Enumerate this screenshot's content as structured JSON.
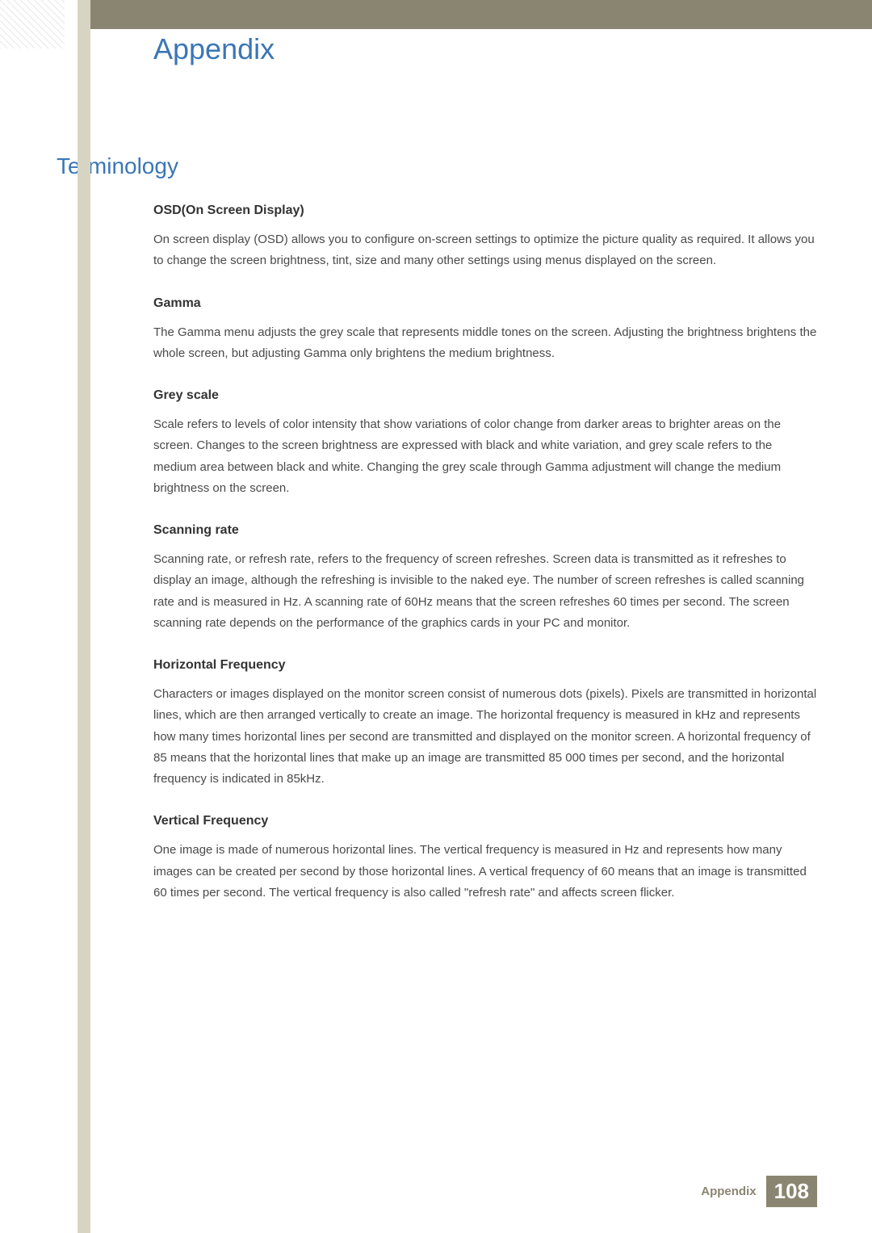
{
  "colors": {
    "accent_blue": "#3b76b5",
    "header_olive": "#8a8570",
    "side_beige": "#d8d4c4",
    "body_text": "#4a4a4a",
    "heading_text": "#333333",
    "background": "#ffffff"
  },
  "typography": {
    "chapter_title_size_pt": 27,
    "section_title_size_pt": 21,
    "term_title_size_pt": 12,
    "body_size_pt": 11,
    "page_number_size_pt": 20,
    "body_line_height": 1.75
  },
  "chapter_title": "Appendix",
  "section_title": "Terminology",
  "terms": [
    {
      "title": "OSD(On Screen Display)",
      "body": "On screen display (OSD) allows you to configure on-screen settings to optimize the picture quality as required. It allows you to change the screen brightness, tint, size and many other settings using menus displayed on the screen."
    },
    {
      "title": "Gamma",
      "body": "The Gamma menu adjusts the grey scale that represents middle tones on the screen. Adjusting the brightness brightens the whole screen, but adjusting Gamma only brightens the medium brightness."
    },
    {
      "title": "Grey scale",
      "body": "Scale refers to levels of color intensity that show variations of color change from darker areas to brighter areas on the screen. Changes to the screen brightness are expressed with black and white variation, and grey scale refers to the medium area between black and white. Changing the grey scale through Gamma adjustment will change the medium brightness on the screen."
    },
    {
      "title": "Scanning rate",
      "body": "Scanning rate, or refresh rate, refers to the frequency of screen refreshes. Screen data is transmitted as it refreshes to display an image, although the refreshing is invisible to the naked eye. The number of screen refreshes is called scanning rate and is measured in Hz. A scanning rate of 60Hz means that the screen refreshes 60 times per second. The screen scanning rate depends on the performance of the graphics cards in your PC and monitor."
    },
    {
      "title": "Horizontal Frequency",
      "body": "Characters or images displayed on the monitor screen consist of numerous dots (pixels). Pixels are transmitted in horizontal lines, which are then arranged vertically to create an image. The horizontal frequency is measured in kHz and represents how many times horizontal lines per second are transmitted and displayed on the monitor screen. A horizontal frequency of 85 means that the horizontal lines that make up an image are transmitted 85 000 times per second, and the horizontal frequency is indicated in 85kHz."
    },
    {
      "title": "Vertical Frequency",
      "body": "One image is made of numerous horizontal lines. The vertical frequency is measured in Hz and represents how many images can be created per second by those horizontal lines. A vertical frequency of 60 means that an image is transmitted 60 times per second. The vertical frequency is also called \"refresh rate\" and affects screen flicker."
    }
  ],
  "footer": {
    "label": "Appendix",
    "page_number": "108"
  }
}
